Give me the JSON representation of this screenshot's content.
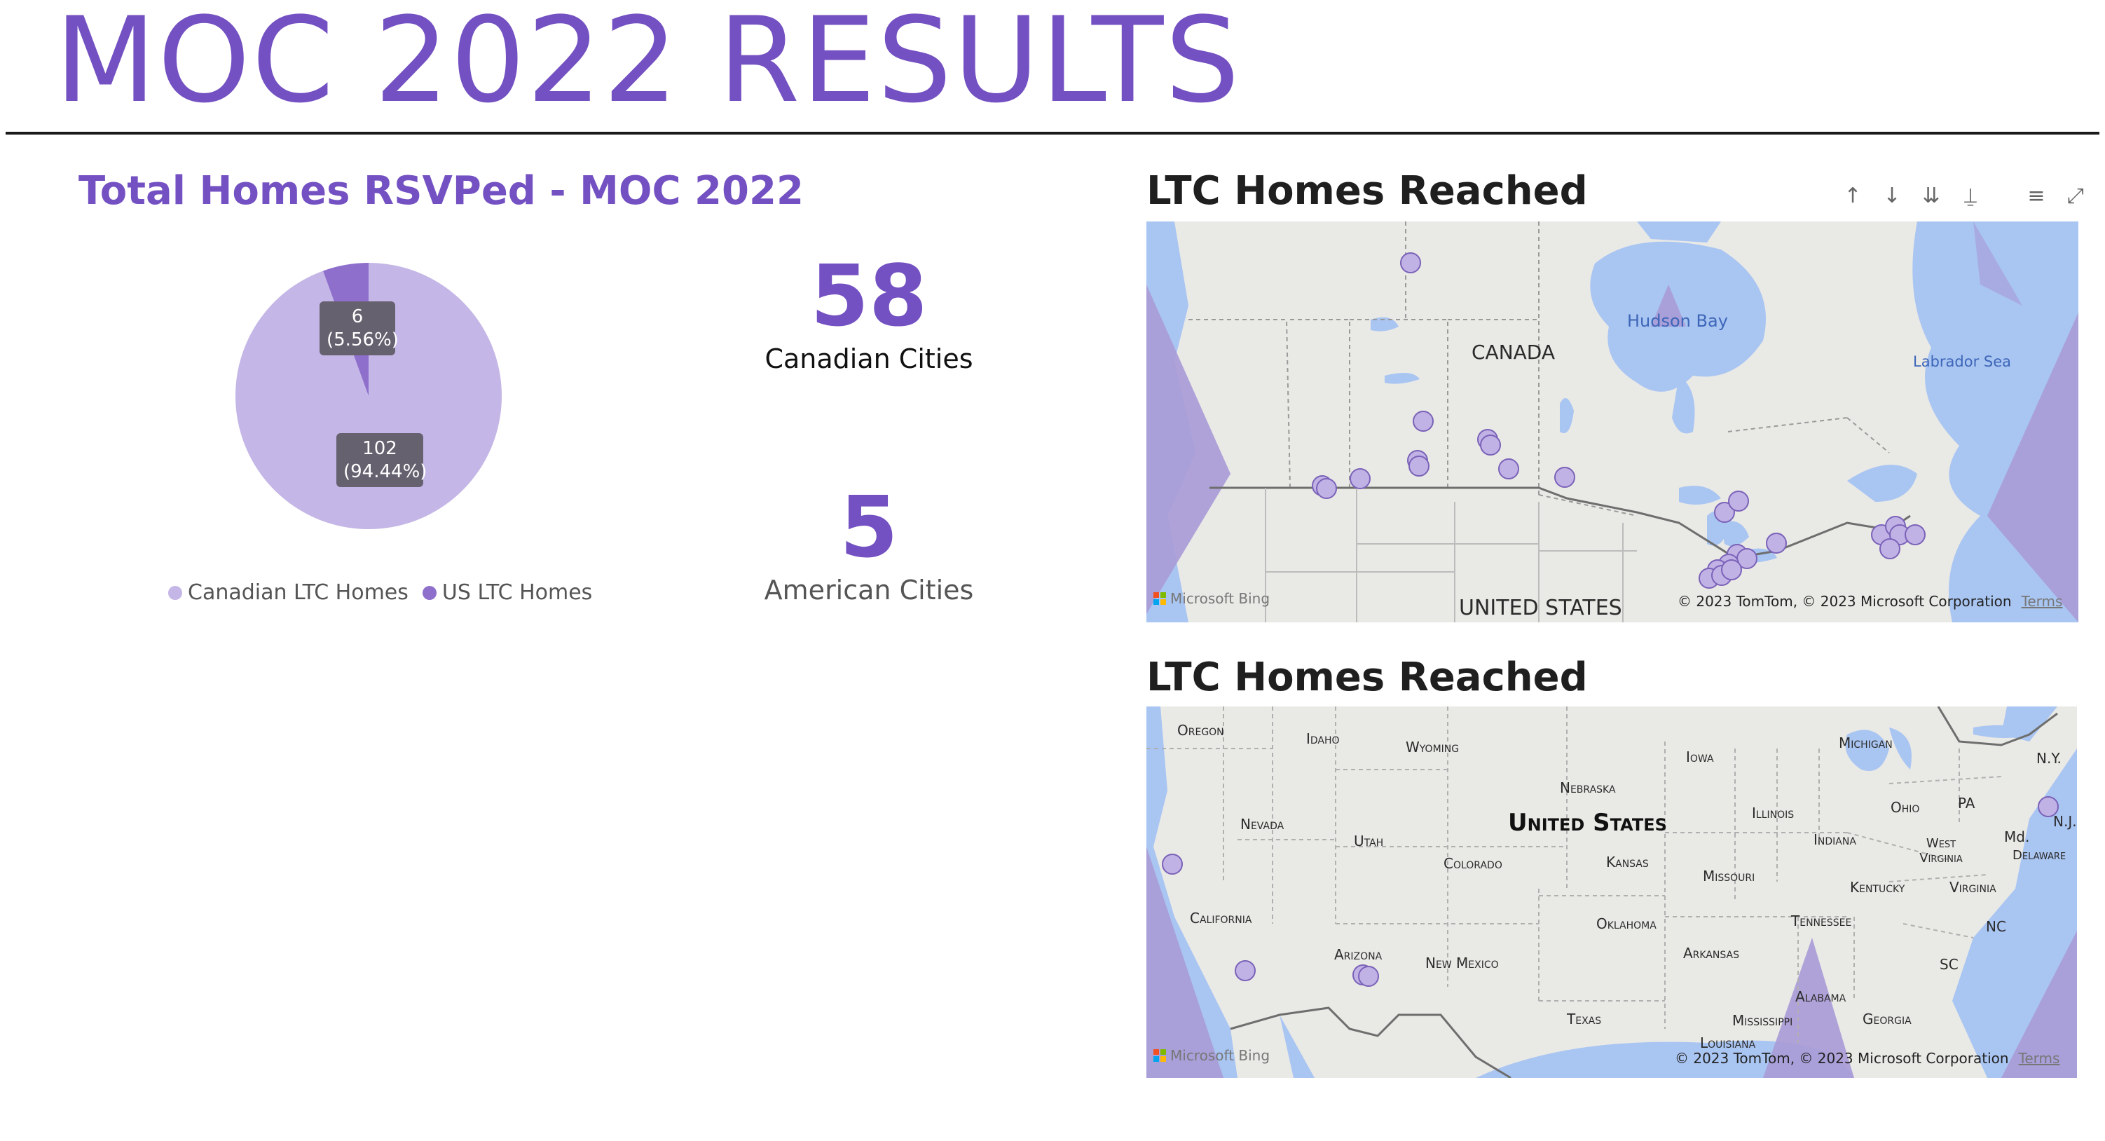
{
  "page": {
    "title": "MOC 2022 RESULTS"
  },
  "pie_chart": {
    "title": "Total Homes RSVPed - MOC 2022",
    "slices": [
      {
        "name": "Canadian LTC Homes",
        "value": 102,
        "value_label": "102",
        "percent_label": "(94.44%)",
        "color": "#c4b6e6"
      },
      {
        "name": "US LTC Homes",
        "value": 6,
        "value_label": "6",
        "percent_label": "(5.56%)",
        "color": "#8e6fcc"
      }
    ],
    "legend": [
      "Canadian LTC Homes",
      "US LTC Homes"
    ]
  },
  "chart_data": {
    "type": "pie",
    "title": "Total Homes RSVPed - MOC 2022",
    "categories": [
      "Canadian LTC Homes",
      "US LTC Homes"
    ],
    "values": [
      102,
      6
    ],
    "percentages": [
      94.44,
      5.56
    ],
    "legend_position": "bottom"
  },
  "kpis": [
    {
      "value": "58",
      "label": "Canadian Cities"
    },
    {
      "value": "5",
      "label": "American Cities"
    }
  ],
  "map_toolbar": {
    "icons": [
      "arrow-up-icon",
      "arrow-down-icon",
      "double-arrow-down-icon",
      "hierarchy-icon",
      "filter-icon",
      "focus-mode-icon"
    ],
    "glyphs": [
      "↑",
      "↓",
      "⇊",
      "⍊",
      "≡",
      "⤢"
    ]
  },
  "maps": [
    {
      "title": "LTC Homes Reached",
      "labels": {
        "country_canada": "CANADA",
        "country_us": "UNITED STATES",
        "hudson_bay": "Hudson Bay",
        "labrador_sea": "Labrador Sea"
      },
      "bing": "Microsoft Bing",
      "attribution": "© 2023 TomTom, © 2023 Microsoft Corporation",
      "terms": "Terms"
    },
    {
      "title": "LTC Homes Reached",
      "labels": {
        "country": "United States",
        "oregon": "Oregon",
        "idaho": "Idaho",
        "wyoming": "Wyoming",
        "iowa": "Iowa",
        "michigan": "Michigan",
        "ny": "N.Y.",
        "nebraska": "Nebraska",
        "nevada": "Nevada",
        "utah": "Utah",
        "illinois": "Illinois",
        "ohio": "Ohio",
        "pa": "PA",
        "nj": "N.J.",
        "md": "Md.",
        "delaware": "Delaware",
        "west_virginia": "West Virginia",
        "colorado": "Colorado",
        "kansas": "Kansas",
        "indiana": "Indiana",
        "missouri": "Missouri",
        "kentucky": "Kentucky",
        "virginia": "Virginia",
        "california": "California",
        "oklahoma": "Oklahoma",
        "tennessee": "Tennessee",
        "nc": "NC",
        "arizona": "Arizona",
        "new_mexico": "New Mexico",
        "arkansas": "Arkansas",
        "sc": "SC",
        "alabama": "Alabama",
        "texas": "Texas",
        "mississippi": "Mississippi",
        "georgia": "Georgia",
        "louisiana": "Louisiana"
      },
      "bing": "Microsoft Bing",
      "attribution": "© 2023 TomTom, © 2023 Microsoft Corporation",
      "terms": "Terms"
    }
  ],
  "colors": {
    "accent": "#7451c2",
    "pie_canada": "#c4b6e6",
    "pie_us": "#8e6fcc",
    "marker_fill": "#c1b2e6",
    "marker_stroke": "#7a62b8",
    "water": "#a9c5f2",
    "land": "#e9e9e6"
  }
}
